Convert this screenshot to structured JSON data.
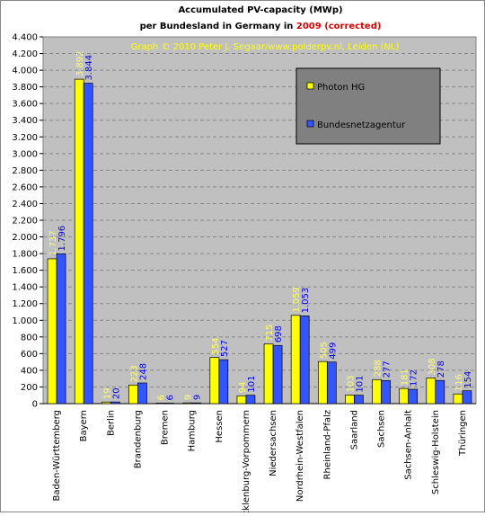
{
  "chart_data": {
    "type": "bar",
    "title": "Accumulated PV-capacity (MWp)",
    "title_line2": "per Bundesland in Germany in",
    "title_highlight": "2009 (corrected)",
    "subtitle": "Graph © 2010 Peter J. Segaar/www.polderpv.nl, Leiden (NL)",
    "categories": [
      "Baden-Württemberg",
      "Bayern",
      "Berlin",
      "Brandenburg",
      "Bremen",
      "Hamburg",
      "Hessen",
      "Mecklenburg-Vorpommern",
      "Niedersachsen",
      "Nordrhein-Westfalen",
      "Rheinland-Pfalz",
      "Saarland",
      "Sachsen",
      "Sachsen-Anhalt",
      "Schleswig-Holstein",
      "Thüringen"
    ],
    "series": [
      {
        "name": "Photon HG",
        "color": "#ffff00",
        "label_color": "#ffff66",
        "values": [
          1737,
          3892,
          19,
          223,
          6,
          9,
          554,
          94,
          715,
          1059,
          505,
          103,
          288,
          181,
          308,
          116
        ],
        "value_labels": [
          "1.737",
          "3.892",
          "19",
          "223",
          "6",
          "9",
          "554",
          "94",
          "715",
          "1.059",
          "505",
          "103",
          "288",
          "181",
          "308",
          "116"
        ]
      },
      {
        "name": "Bundesnetzagentur",
        "color": "#3355ff",
        "label_color": "#0000ee",
        "values": [
          1796,
          3844,
          20,
          248,
          6,
          9,
          527,
          101,
          698,
          1053,
          499,
          101,
          277,
          172,
          278,
          154
        ],
        "value_labels": [
          "1.796",
          "3.844",
          "20",
          "248",
          "6",
          "9",
          "527",
          "101",
          "698",
          "1.053",
          "499",
          "101",
          "277",
          "172",
          "278",
          "154"
        ]
      }
    ],
    "ylim": [
      0,
      4400
    ],
    "yticks": [
      0,
      200,
      400,
      600,
      800,
      {
        "value": 1000,
        "label": "1.000"
      },
      {
        "value": 1200,
        "label": "1.200"
      },
      {
        "value": 1400,
        "label": "1.400"
      },
      {
        "value": 1600,
        "label": "1.600"
      },
      {
        "value": 1800,
        "label": "1.800"
      },
      {
        "value": 2000,
        "label": "2.000"
      },
      {
        "value": 2200,
        "label": "2.200"
      },
      {
        "value": 2400,
        "label": "2.400"
      },
      {
        "value": 2600,
        "label": "2.600"
      },
      {
        "value": 2800,
        "label": "2.800"
      },
      {
        "value": 3000,
        "label": "3.000"
      },
      {
        "value": 3200,
        "label": "3.200"
      },
      {
        "value": 3400,
        "label": "3.400"
      },
      {
        "value": 3600,
        "label": "3.600"
      },
      {
        "value": 3800,
        "label": "3.800"
      },
      {
        "value": 4000,
        "label": "4.000"
      },
      {
        "value": 4200,
        "label": "4.200"
      },
      {
        "value": 4400,
        "label": "4.400"
      }
    ],
    "grid": true,
    "legend": "upper right"
  }
}
